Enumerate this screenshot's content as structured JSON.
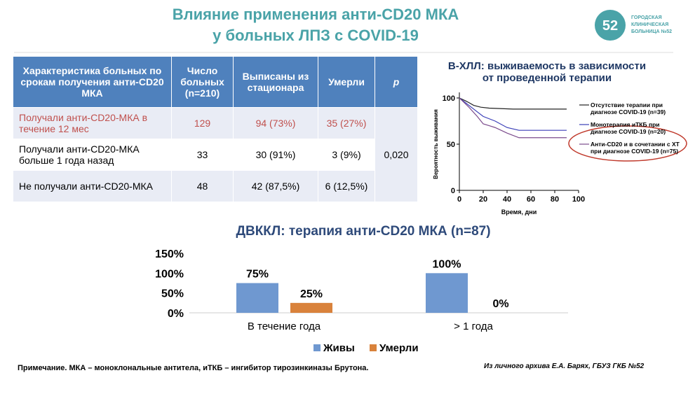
{
  "header": {
    "title_line1": "Влияние применения анти-CD20 МКА",
    "title_line2": "у больных ЛПЗ с COVID-19",
    "logo_mark": "52",
    "logo_text": [
      "ГОРОДСКАЯ",
      "КЛИНИЧЕСКАЯ",
      "БОЛЬНИЦА №52"
    ]
  },
  "table": {
    "columns": [
      "Характеристика больных по срокам получения анти-CD20 МКА",
      "Число больных (n=210)",
      "Выписаны из стационара",
      "Умерли",
      "p"
    ],
    "rows": [
      [
        "Получали анти-CD20-МКА в течение 12 мес",
        "129",
        "94 (73%)",
        "35 (27%)"
      ],
      [
        "Получали анти-CD20-МКА больше 1 года назад",
        "33",
        "30 (91%)",
        "3 (9%)"
      ],
      [
        "Не получали анти-CD20-МКА",
        "48",
        "42 (87,5%)",
        "6 (12,5%)"
      ]
    ],
    "p": "0,020"
  },
  "chart_data": [
    {
      "type": "line",
      "title": "В-ХЛЛ: выживаемость в зависимости от проведенной терапии",
      "xlabel": "Время, дни",
      "ylabel": "Вероятность выживания",
      "xlim": [
        0,
        100
      ],
      "xticks": [
        0,
        20,
        40,
        60,
        80,
        100
      ],
      "ylim": [
        0,
        100
      ],
      "yticks": [
        0,
        50,
        100
      ],
      "series": [
        {
          "name": "Отсутствие терапии при диагнозе COVID-19 (n=39)",
          "color": "#222222",
          "x": [
            0,
            5,
            8,
            12,
            18,
            25,
            45,
            90
          ],
          "values": [
            100,
            97,
            95,
            92,
            90,
            89,
            88,
            88
          ]
        },
        {
          "name": "Монотерапия иТКБ при диагнозе COVID-19 (n=20)",
          "color": "#3b3fb8",
          "x": [
            0,
            5,
            10,
            15,
            20,
            30,
            40,
            50,
            90
          ],
          "values": [
            100,
            95,
            90,
            85,
            80,
            75,
            68,
            65,
            65
          ]
        },
        {
          "name": "Анти-CD20 и в сочетании с ХТ при диагнозе COVID-19 (n=75)",
          "color": "#7b4b8c",
          "x": [
            0,
            8,
            15,
            20,
            25,
            30,
            40,
            50,
            90
          ],
          "values": [
            100,
            90,
            80,
            72,
            70,
            68,
            62,
            57,
            57
          ]
        }
      ]
    },
    {
      "type": "bar",
      "title": "ДВККЛ: терапия анти-CD20 МКА (n=87)",
      "categories": [
        "В течение года",
        "> 1 года"
      ],
      "ylim": [
        0,
        150
      ],
      "yticks": [
        {
          "value": 0,
          "label": "0%"
        },
        {
          "value": 50,
          "label": "50%"
        },
        {
          "value": 100,
          "label": "100%"
        },
        {
          "value": 150,
          "label": "150%"
        }
      ],
      "series": [
        {
          "name": "Живы",
          "color": "#6f98d0",
          "values": [
            75,
            100
          ],
          "value_labels": [
            "75%",
            "100%"
          ]
        },
        {
          "name": "Умерли",
          "color": "#d9823b",
          "values": [
            25,
            0
          ],
          "value_labels": [
            "25%",
            "0%"
          ]
        }
      ],
      "legend": "bottom"
    }
  ],
  "note": "Примечание. МКА – моноклональные антитела, иТКБ – ингибитор тирозинкиназы Брутона.",
  "source": "Из личного архива Е.А. Барях, ГБУЗ ГКБ №52"
}
